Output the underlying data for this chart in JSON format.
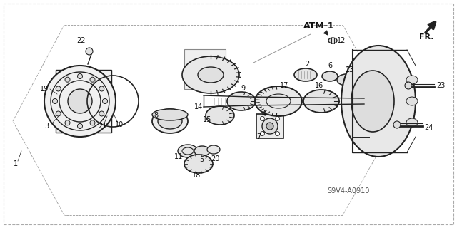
{
  "bg_color": "#ffffff",
  "diagram_ref": "S9V4-A0910",
  "atm_label": "ATM-1",
  "fr_label": "FR.",
  "line_color": "#222222",
  "text_color": "#111111",
  "part_text_size": 7,
  "atm_text_size": 9,
  "ref_text_size": 7
}
